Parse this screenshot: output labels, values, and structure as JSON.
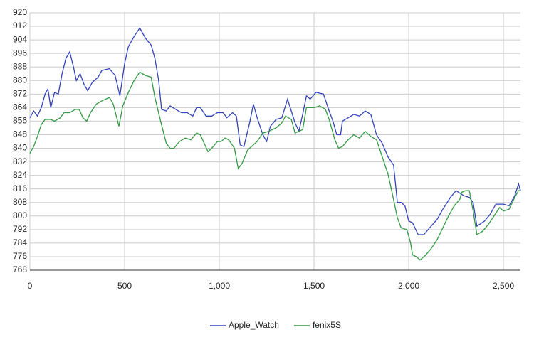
{
  "chart_data": {
    "type": "line",
    "xlim": [
      0,
      2590
    ],
    "ylim": [
      768,
      920
    ],
    "xticks": [
      0,
      500,
      {
        "value": 1000,
        "label": "1,000"
      },
      {
        "value": 1500,
        "label": "1,500"
      },
      {
        "value": 2000,
        "label": "2,000"
      },
      {
        "value": 2500,
        "label": "2,500"
      }
    ],
    "yticks": [
      768,
      776,
      784,
      792,
      800,
      808,
      816,
      824,
      832,
      840,
      848,
      856,
      864,
      872,
      880,
      888,
      896,
      904,
      912,
      920
    ],
    "grid": true,
    "legend": "bottom",
    "series": [
      {
        "name": "Apple_Watch",
        "color": "#3344bb",
        "x": [
          0,
          20,
          40,
          60,
          80,
          95,
          110,
          130,
          150,
          170,
          190,
          210,
          230,
          245,
          265,
          285,
          305,
          330,
          360,
          380,
          420,
          450,
          475,
          500,
          520,
          550,
          580,
          610,
          640,
          660,
          680,
          695,
          720,
          740,
          770,
          800,
          830,
          860,
          880,
          900,
          930,
          960,
          990,
          1020,
          1040,
          1070,
          1090,
          1110,
          1130,
          1160,
          1180,
          1200,
          1230,
          1250,
          1270,
          1300,
          1330,
          1360,
          1380,
          1400,
          1420,
          1440,
          1460,
          1480,
          1510,
          1550,
          1580,
          1600,
          1620,
          1640,
          1650,
          1680,
          1710,
          1740,
          1770,
          1800,
          1830,
          1860,
          1890,
          1920,
          1940,
          1960,
          1980,
          2000,
          2020,
          2050,
          2080,
          2110,
          2150,
          2180,
          2220,
          2250,
          2290,
          2320,
          2340,
          2360,
          2400,
          2430,
          2460,
          2500,
          2530,
          2560,
          2580,
          2590
        ],
        "values": [
          858,
          862,
          859,
          864,
          872,
          875,
          864,
          873,
          872,
          884,
          893,
          897,
          888,
          880,
          884,
          878,
          874,
          879,
          882,
          886,
          887,
          883,
          871,
          890,
          900,
          906,
          911,
          905,
          901,
          893,
          880,
          863,
          862,
          865,
          863,
          861,
          861,
          859,
          864,
          864,
          859,
          859,
          861,
          861,
          858,
          861,
          859,
          842,
          841,
          855,
          866,
          858,
          848,
          844,
          853,
          857,
          858,
          869,
          862,
          855,
          850,
          860,
          871,
          869,
          873,
          872,
          862,
          856,
          848,
          848,
          856,
          858,
          860,
          859,
          862,
          860,
          848,
          843,
          835,
          830,
          808,
          808,
          806,
          797,
          796,
          789,
          789,
          793,
          798,
          804,
          811,
          815,
          812,
          811,
          808,
          794,
          797,
          801,
          807,
          807,
          806,
          812,
          819,
          815
        ]
      },
      {
        "name": "fenix5S",
        "color": "#339944",
        "x": [
          0,
          20,
          40,
          60,
          80,
          110,
          130,
          160,
          180,
          210,
          240,
          260,
          280,
          300,
          320,
          350,
          380,
          420,
          440,
          470,
          490,
          520,
          550,
          580,
          610,
          640,
          660,
          690,
          720,
          740,
          760,
          790,
          820,
          850,
          880,
          900,
          940,
          960,
          990,
          1010,
          1030,
          1050,
          1080,
          1100,
          1120,
          1150,
          1170,
          1200,
          1230,
          1260,
          1300,
          1330,
          1350,
          1380,
          1400,
          1440,
          1460,
          1500,
          1530,
          1560,
          1580,
          1610,
          1630,
          1650,
          1680,
          1710,
          1740,
          1770,
          1800,
          1830,
          1860,
          1890,
          1910,
          1940,
          1960,
          1990,
          2010,
          2020,
          2040,
          2060,
          2090,
          2120,
          2150,
          2180,
          2210,
          2240,
          2270,
          2280,
          2300,
          2320,
          2340,
          2360,
          2390,
          2420,
          2450,
          2480,
          2500,
          2530,
          2560,
          2580,
          2590
        ],
        "values": [
          837,
          841,
          847,
          854,
          857,
          857,
          856,
          858,
          861,
          861,
          863,
          863,
          858,
          856,
          861,
          866,
          868,
          870,
          866,
          853,
          865,
          873,
          880,
          885,
          883,
          882,
          870,
          856,
          843,
          840,
          840,
          844,
          846,
          845,
          849,
          848,
          838,
          840,
          844,
          844,
          846,
          845,
          840,
          828,
          831,
          839,
          841,
          844,
          849,
          850,
          852,
          855,
          859,
          857,
          849,
          851,
          864,
          864,
          865,
          863,
          857,
          845,
          840,
          841,
          845,
          848,
          846,
          850,
          847,
          845,
          835,
          825,
          815,
          799,
          793,
          792,
          784,
          777,
          776,
          774,
          777,
          781,
          786,
          793,
          800,
          806,
          810,
          814,
          815,
          815,
          803,
          789,
          791,
          795,
          800,
          805,
          803,
          804,
          811,
          815,
          815
        ]
      }
    ]
  }
}
